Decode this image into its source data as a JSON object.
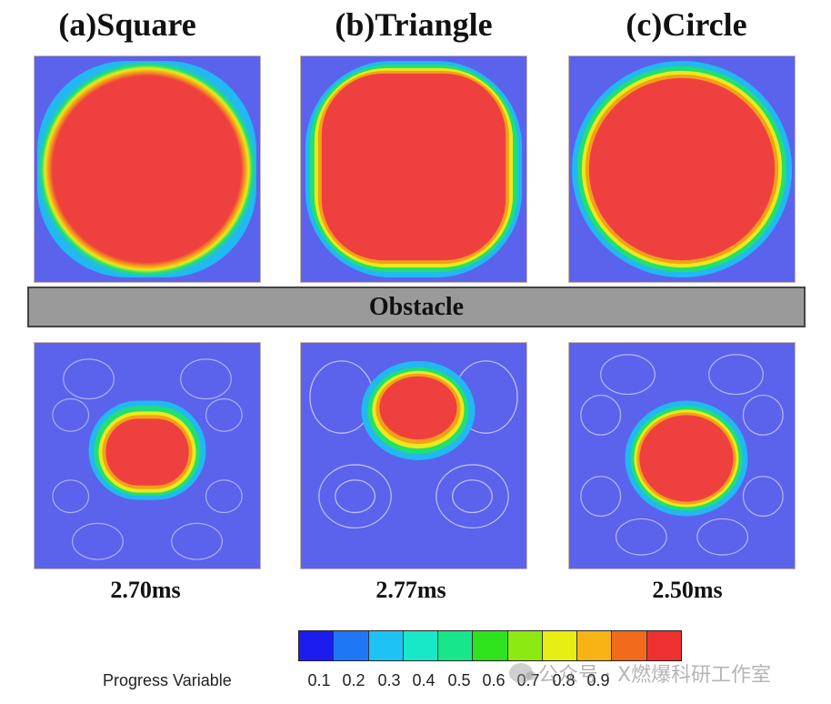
{
  "titles": {
    "square": "(a)Square",
    "triangle": "(b)Triangle",
    "circle": "(c)Circle"
  },
  "obstacle_label": "Obstacle",
  "times": {
    "square": "2.70ms",
    "triangle": "2.77ms",
    "circle": "2.50ms"
  },
  "colorbar": {
    "label": "Progress Variable",
    "ticks": [
      "0.1",
      "0.2",
      "0.3",
      "0.4",
      "0.5",
      "0.6",
      "0.7",
      "0.8",
      "0.9"
    ],
    "colors": [
      "#1c1cf0",
      "#1e78f6",
      "#1fc2f4",
      "#18e8c8",
      "#18e68a",
      "#2ee21e",
      "#8cea12",
      "#e6ee14",
      "#f7b414",
      "#f26a1c",
      "#ee3030"
    ]
  },
  "watermark": "公众号 · X燃爆科研工作室"
}
